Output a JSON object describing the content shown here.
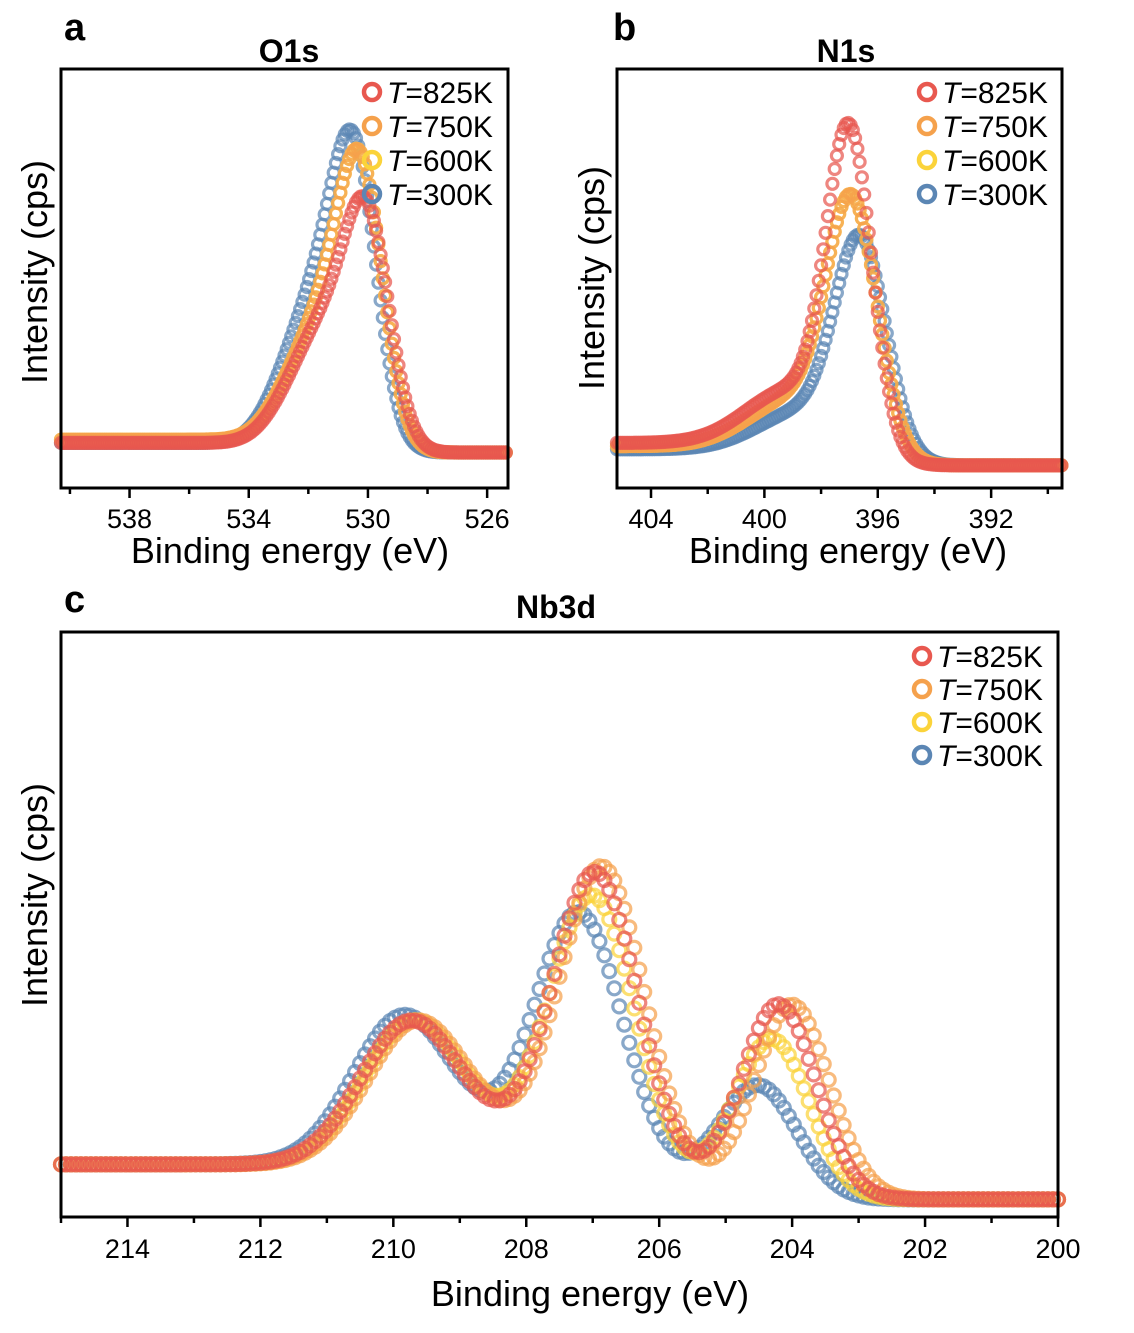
{
  "colors": {
    "T825": "#e8584f",
    "T750": "#f5a14c",
    "T600": "#fbd33a",
    "T300": "#5b86b4"
  },
  "chart_data": [
    {
      "panel": "a",
      "type": "scatter",
      "title": "O1s",
      "xlabel": "Binding energy (eV)",
      "ylabel": "Intensity (cps)",
      "xlim": [
        540.3,
        525.3
      ],
      "ylim": [
        0,
        1.3
      ],
      "xticks": [
        538,
        534,
        530,
        526
      ],
      "xtick_labels": [
        "538",
        "534",
        "530",
        "526"
      ],
      "legend_position": "top-right",
      "series": [
        {
          "name": "T=825K",
          "color_key": "T825",
          "peaks": [
            {
              "center": 530.0,
              "height": 0.64,
              "width": 0.75
            },
            {
              "center": 531.4,
              "height": 0.35,
              "width": 1.0
            },
            {
              "center": 532.8,
              "height": 0.05,
              "width": 0.8
            }
          ],
          "baseline_low": 0.11,
          "baseline_high": 0.14
        },
        {
          "name": "T=750K",
          "color_key": "T750",
          "peaks": [
            {
              "center": 530.2,
              "height": 0.74,
              "width": 0.75
            },
            {
              "center": 531.4,
              "height": 0.36,
              "width": 1.0
            },
            {
              "center": 532.8,
              "height": 0.06,
              "width": 0.8
            }
          ],
          "baseline_low": 0.11,
          "baseline_high": 0.15
        },
        {
          "name": "T=600K",
          "color_key": "T600",
          "peaks": [
            {
              "center": 530.2,
              "height": 0.74,
              "width": 0.75
            },
            {
              "center": 531.4,
              "height": 0.36,
              "width": 1.0
            },
            {
              "center": 532.8,
              "height": 0.06,
              "width": 0.8
            }
          ],
          "baseline_low": 0.11,
          "baseline_high": 0.15
        },
        {
          "name": "T=300K",
          "color_key": "T300",
          "peaks": [
            {
              "center": 530.4,
              "height": 0.76,
              "width": 0.75
            },
            {
              "center": 531.6,
              "height": 0.43,
              "width": 1.0
            },
            {
              "center": 532.9,
              "height": 0.06,
              "width": 0.8
            }
          ],
          "baseline_low": 0.11,
          "baseline_high": 0.14
        }
      ]
    },
    {
      "panel": "b",
      "type": "scatter",
      "title": "N1s",
      "xlabel": "Binding energy (eV)",
      "ylabel": "Intensity (cps)",
      "xlim": [
        405.2,
        389.5
      ],
      "ylim": [
        0,
        1.3
      ],
      "xticks": [
        404,
        400,
        396,
        392
      ],
      "xtick_labels": [
        "404",
        "400",
        "396",
        "392"
      ],
      "legend_position": "top-right",
      "series": [
        {
          "name": "T=825K",
          "color_key": "T825",
          "peaks": [
            {
              "center": 397.0,
              "height": 0.97,
              "width": 0.8
            },
            {
              "center": 399.0,
              "height": 0.17,
              "width": 1.6
            }
          ],
          "baseline_low": 0.07,
          "baseline_high": 0.14
        },
        {
          "name": "T=750K",
          "color_key": "T750",
          "peaks": [
            {
              "center": 396.9,
              "height": 0.76,
              "width": 0.9
            },
            {
              "center": 398.9,
              "height": 0.15,
              "width": 1.6
            }
          ],
          "baseline_low": 0.07,
          "baseline_high": 0.13
        },
        {
          "name": "T=600K",
          "color_key": "T600",
          "peaks": [
            {
              "center": 396.9,
              "height": 0.76,
              "width": 0.9
            },
            {
              "center": 398.9,
              "height": 0.15,
              "width": 1.6
            }
          ],
          "baseline_low": 0.07,
          "baseline_high": 0.13
        },
        {
          "name": "T=300K",
          "color_key": "T300",
          "peaks": [
            {
              "center": 396.6,
              "height": 0.65,
              "width": 0.9
            },
            {
              "center": 398.6,
              "height": 0.12,
              "width": 1.6
            }
          ],
          "baseline_low": 0.07,
          "baseline_high": 0.12
        }
      ]
    },
    {
      "panel": "c",
      "type": "scatter",
      "title": "Nb3d",
      "xlabel": "Binding energy (eV)",
      "ylabel": "Intensity (cps)",
      "xlim": [
        215,
        200
      ],
      "ylim": [
        0,
        1.0
      ],
      "xticks": [
        214,
        212,
        210,
        208,
        206,
        204,
        202,
        200
      ],
      "xtick_labels": [
        "214",
        "212",
        "210",
        "208",
        "206",
        "204",
        "202",
        "200"
      ],
      "legend_position": "top-right",
      "series": [
        {
          "name": "T=825K",
          "color_key": "T825",
          "peaks": [
            {
              "center": 206.95,
              "height": 0.47,
              "width": 0.62
            },
            {
              "center": 204.2,
              "height": 0.33,
              "width": 0.56
            },
            {
              "center": 209.75,
              "height": 0.24,
              "width": 0.75
            },
            {
              "center": 207.2,
              "height": 0.08,
              "width": 1.2
            }
          ],
          "baseline_low": 0.03,
          "baseline_high": 0.09
        },
        {
          "name": "T=750K",
          "color_key": "T750",
          "peaks": [
            {
              "center": 206.85,
              "height": 0.48,
              "width": 0.62
            },
            {
              "center": 204.0,
              "height": 0.33,
              "width": 0.56
            },
            {
              "center": 209.65,
              "height": 0.24,
              "width": 0.75
            },
            {
              "center": 207.1,
              "height": 0.08,
              "width": 1.2
            }
          ],
          "baseline_low": 0.03,
          "baseline_high": 0.09
        },
        {
          "name": "T=600K",
          "color_key": "T600",
          "peaks": [
            {
              "center": 207.0,
              "height": 0.43,
              "width": 0.62
            },
            {
              "center": 204.3,
              "height": 0.27,
              "width": 0.56
            },
            {
              "center": 209.7,
              "height": 0.24,
              "width": 0.75
            },
            {
              "center": 207.2,
              "height": 0.08,
              "width": 1.2
            }
          ],
          "baseline_low": 0.03,
          "baseline_high": 0.09
        },
        {
          "name": "T=300K",
          "color_key": "T300",
          "peaks": [
            {
              "center": 207.2,
              "height": 0.4,
              "width": 0.64
            },
            {
              "center": 204.5,
              "height": 0.19,
              "width": 0.58
            },
            {
              "center": 209.85,
              "height": 0.25,
              "width": 0.75
            },
            {
              "center": 207.3,
              "height": 0.08,
              "width": 1.2
            }
          ],
          "baseline_low": 0.03,
          "baseline_high": 0.09
        }
      ]
    }
  ]
}
